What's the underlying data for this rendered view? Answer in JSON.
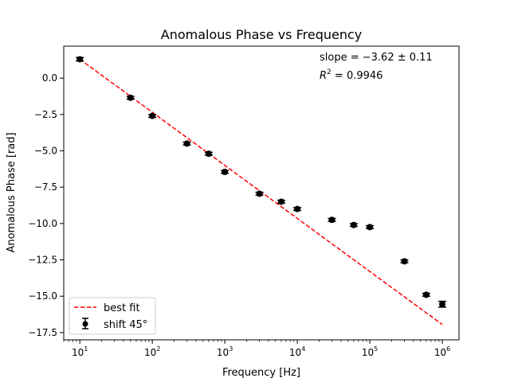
{
  "chart_data": {
    "type": "scatter",
    "title": "Anomalous Phase vs Frequency",
    "xlabel": "Frequency [Hz]",
    "ylabel": "Anomalous Phase [rad]",
    "x_scale": "log",
    "xlim": [
      6,
      1700000
    ],
    "ylim": [
      -18.0,
      2.2
    ],
    "x_ticks": [
      {
        "value": 10,
        "base": "10",
        "exp": "1"
      },
      {
        "value": 100,
        "base": "10",
        "exp": "2"
      },
      {
        "value": 1000,
        "base": "10",
        "exp": "3"
      },
      {
        "value": 10000,
        "base": "10",
        "exp": "4"
      },
      {
        "value": 100000,
        "base": "10",
        "exp": "5"
      },
      {
        "value": 1000000,
        "base": "10",
        "exp": "6"
      }
    ],
    "y_ticks": [
      {
        "value": 0.0,
        "label": "0.0"
      },
      {
        "value": -2.5,
        "label": "−2.5"
      },
      {
        "value": -5.0,
        "label": "−5.0"
      },
      {
        "value": -7.5,
        "label": "−7.5"
      },
      {
        "value": -10.0,
        "label": "−10.0"
      },
      {
        "value": -12.5,
        "label": "−12.5"
      },
      {
        "value": -15.0,
        "label": "−15.0"
      },
      {
        "value": -17.5,
        "label": "−17.5"
      }
    ],
    "grid": false,
    "legend_position": "lower-left",
    "series": [
      {
        "name": "shift 45°",
        "kind": "errorbar",
        "color": "#000000",
        "x": [
          10,
          50,
          100,
          300,
          600,
          1000,
          3000,
          6000,
          10000,
          30000,
          60000,
          100000,
          300000,
          600000,
          1000000
        ],
        "y": [
          1.3,
          -1.35,
          -2.6,
          -4.5,
          -5.2,
          -6.45,
          -7.95,
          -8.5,
          -9.0,
          -9.75,
          -10.1,
          -10.25,
          -12.6,
          -14.9,
          -15.55
        ],
        "y_err": [
          0.12,
          0.1,
          0.1,
          0.1,
          0.1,
          0.1,
          0.1,
          0.1,
          0.1,
          0.1,
          0.1,
          0.1,
          0.1,
          0.1,
          0.2
        ]
      },
      {
        "name": "best fit",
        "kind": "line",
        "color": "#ff0000",
        "dash": "dashed",
        "x": [
          10,
          1000000
        ],
        "y": [
          1.3,
          -16.95
        ]
      }
    ],
    "annotations": {
      "slope_prefix": "slope",
      "slope_value": " = −3.62 ± 0.11",
      "r2_base": "R",
      "r2_exp": "2",
      "r2_value": " = 0.9946"
    }
  }
}
